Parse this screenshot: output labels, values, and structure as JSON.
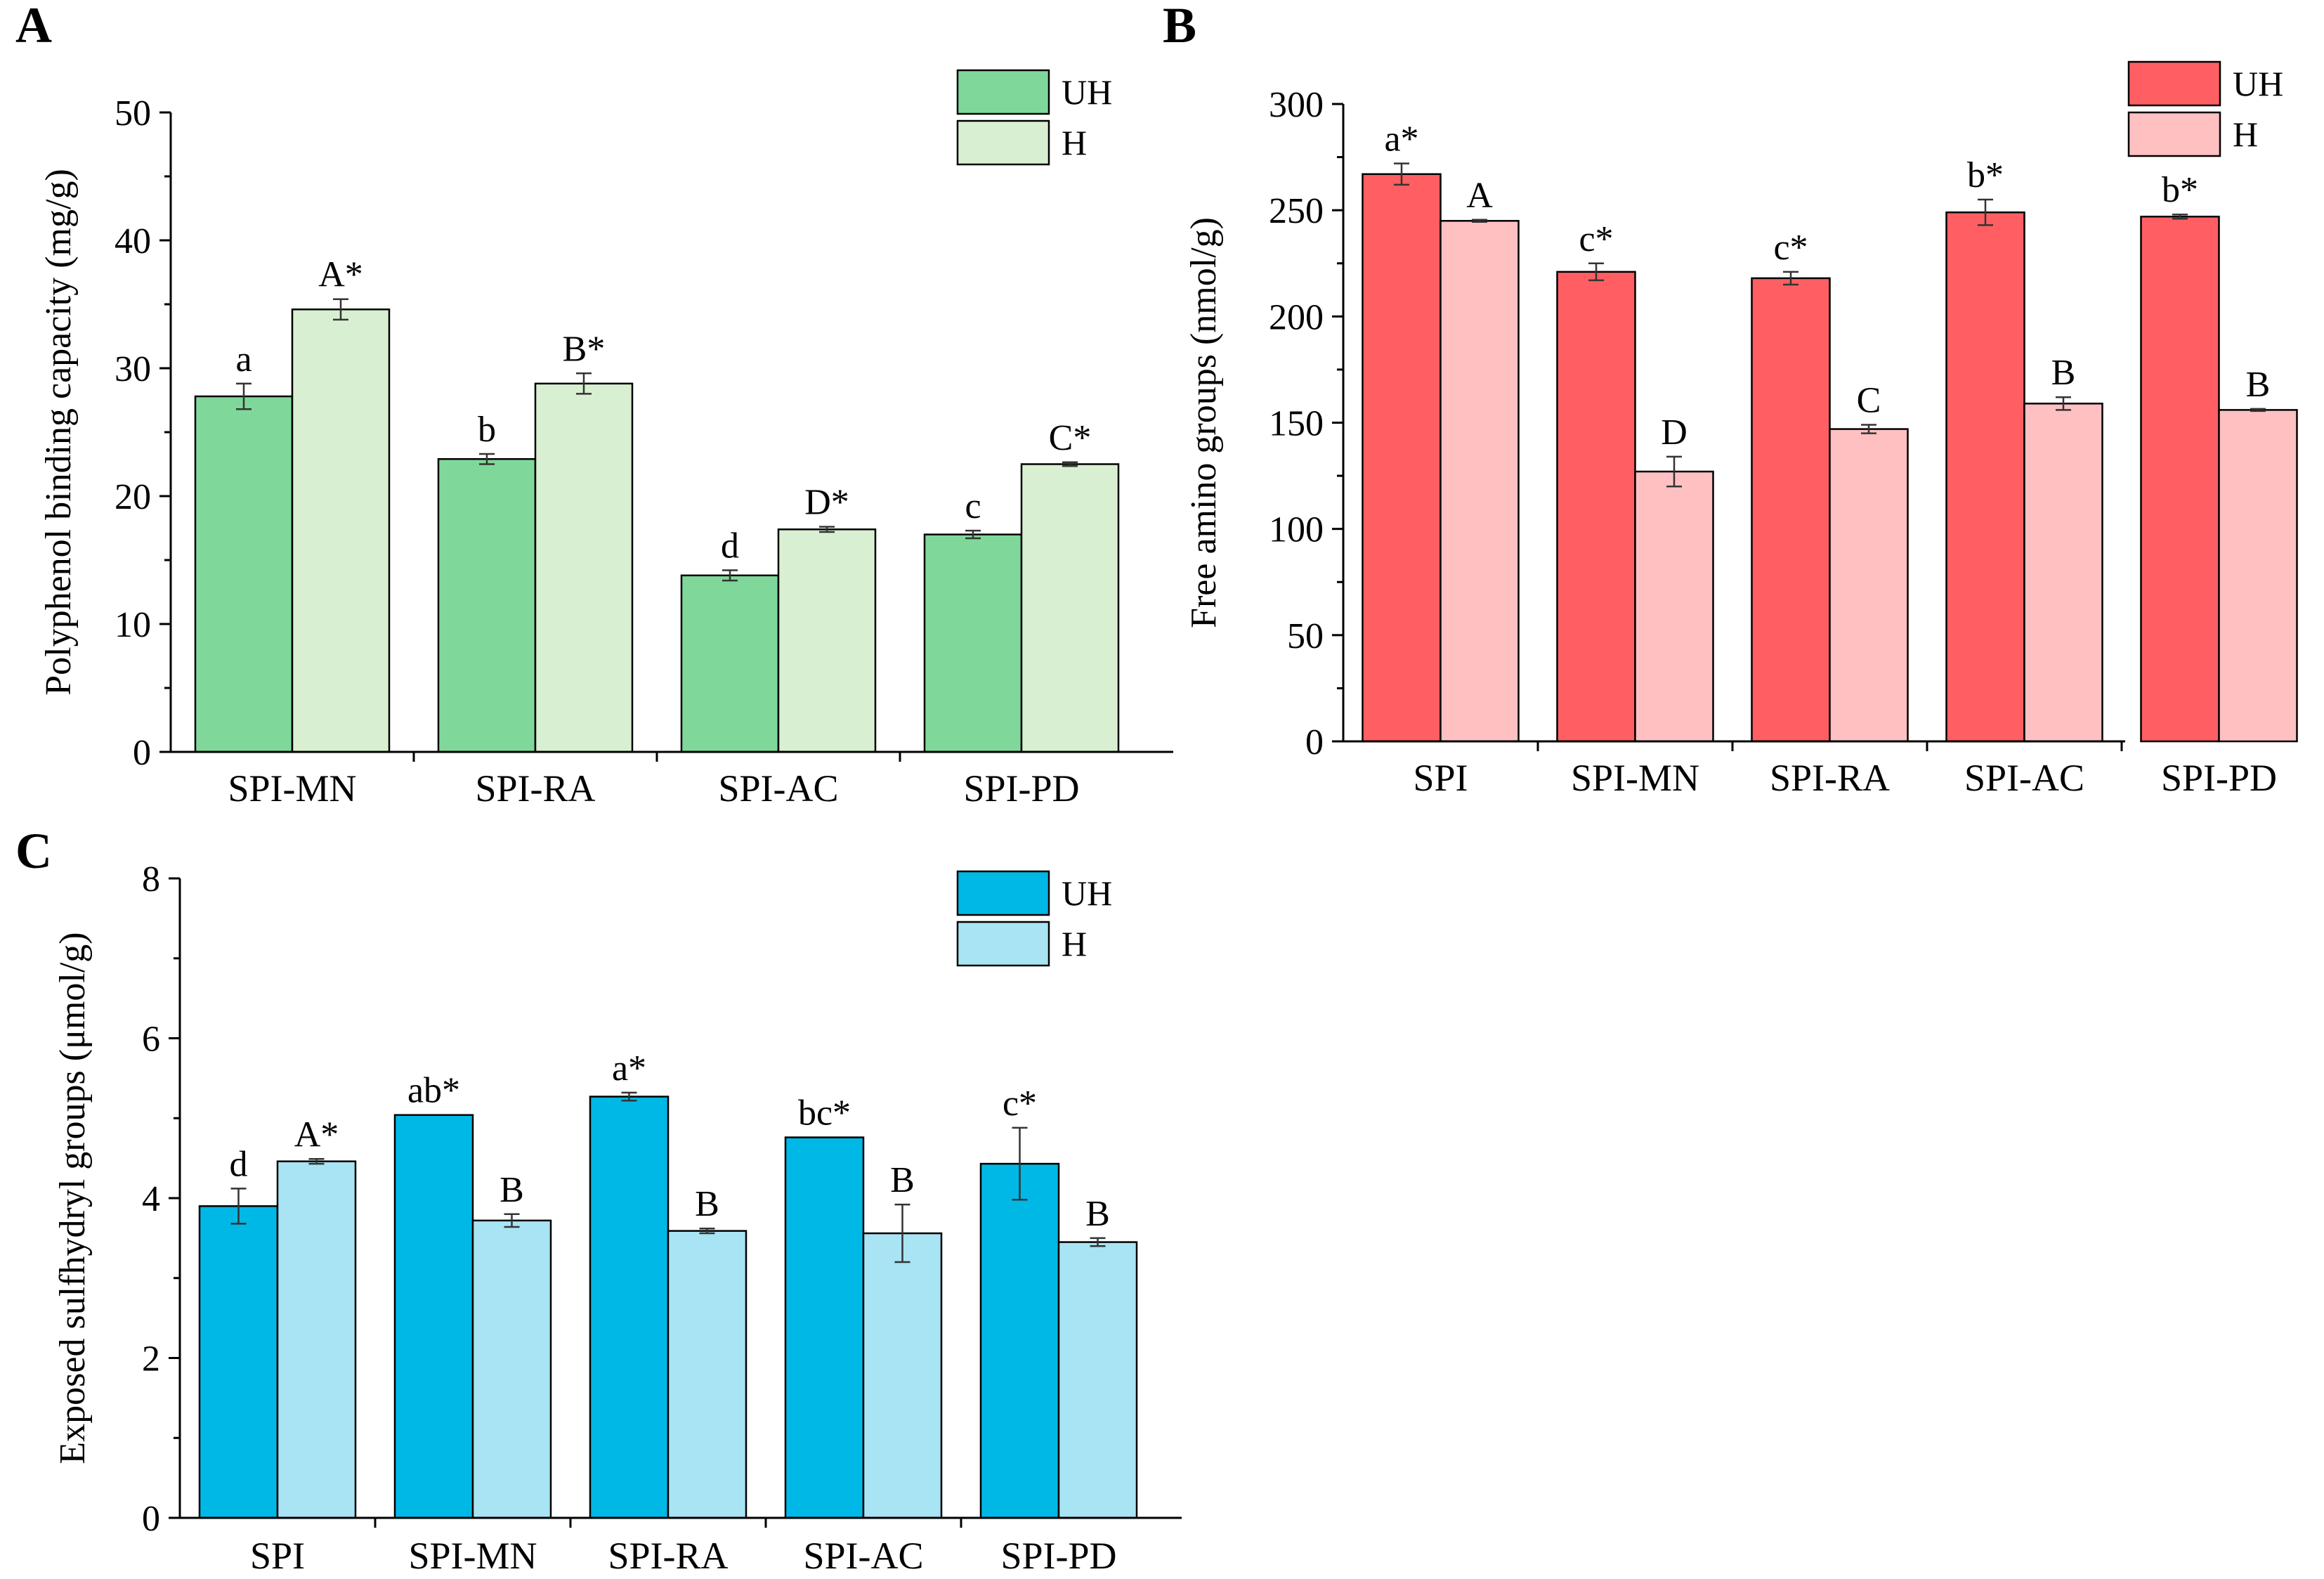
{
  "chart_data": [
    {
      "panel": "A",
      "type": "bar",
      "ylabel": "Polyphenol binding capacity (mg/g)",
      "xlabel": "",
      "ylim": [
        0,
        50
      ],
      "yticks": [
        0,
        10,
        20,
        30,
        40,
        50
      ],
      "categories": [
        "SPI-MN",
        "SPI-RA",
        "SPI-AC",
        "SPI-PD"
      ],
      "series": [
        {
          "name": "UH",
          "color": "#7fd89a",
          "values": [
            27.8,
            22.9,
            13.8,
            17.0
          ],
          "errors": [
            1.0,
            0.4,
            0.4,
            0.3
          ],
          "labels": [
            "a",
            "b",
            "d",
            "c"
          ]
        },
        {
          "name": "H",
          "color": "#d9efd1",
          "values": [
            34.6,
            28.8,
            17.4,
            22.5
          ],
          "errors": [
            0.8,
            0.8,
            0.2,
            0.15
          ],
          "labels": [
            "A*",
            "B*",
            "D*",
            "C*"
          ]
        }
      ],
      "legend_position": "top-right"
    },
    {
      "panel": "B",
      "type": "bar",
      "ylabel": "Free amino groups (nmol/g)",
      "xlabel": "",
      "ylim": [
        0,
        300
      ],
      "yticks": [
        0,
        50,
        100,
        150,
        200,
        250,
        300
      ],
      "categories": [
        "SPI",
        "SPI-MN",
        "SPI-RA",
        "SPI-AC",
        "SPI-PD"
      ],
      "series": [
        {
          "name": "UH",
          "color": "#ff5f62",
          "values": [
            267,
            221,
            218,
            249,
            247
          ],
          "errors": [
            5,
            4,
            3,
            6,
            1
          ],
          "labels": [
            "a*",
            "c*",
            "c*",
            "b*",
            "b*"
          ]
        },
        {
          "name": "H",
          "color": "#ffc0c2",
          "values": [
            245,
            127,
            147,
            159,
            156
          ],
          "errors": [
            0.5,
            7,
            2,
            3,
            0.5
          ],
          "labels": [
            "A",
            "D",
            "C",
            "B",
            "B"
          ]
        }
      ],
      "legend_position": "top-right"
    },
    {
      "panel": "C",
      "type": "bar",
      "ylabel": "Exposed sulfhydryl groups (μmol/g)",
      "xlabel": "",
      "ylim": [
        0,
        8
      ],
      "yticks": [
        0,
        2,
        4,
        6,
        8
      ],
      "categories": [
        "SPI",
        "SPI-MN",
        "SPI-RA",
        "SPI-AC",
        "SPI-PD"
      ],
      "series": [
        {
          "name": "UH",
          "color": "#00b8e6",
          "values": [
            3.9,
            5.04,
            5.27,
            4.76,
            4.43
          ],
          "errors": [
            0.22,
            0.0,
            0.05,
            0.0,
            0.45
          ],
          "labels": [
            "d",
            "ab*",
            "a*",
            "bc*",
            "c*"
          ]
        },
        {
          "name": "H",
          "color": "#a8e4f3",
          "values": [
            4.46,
            3.72,
            3.59,
            3.56,
            3.45
          ],
          "errors": [
            0.03,
            0.08,
            0.03,
            0.36,
            0.05
          ],
          "labels": [
            "A*",
            "B",
            "B",
            "B",
            "B"
          ]
        }
      ],
      "legend_position": "top-right"
    }
  ]
}
